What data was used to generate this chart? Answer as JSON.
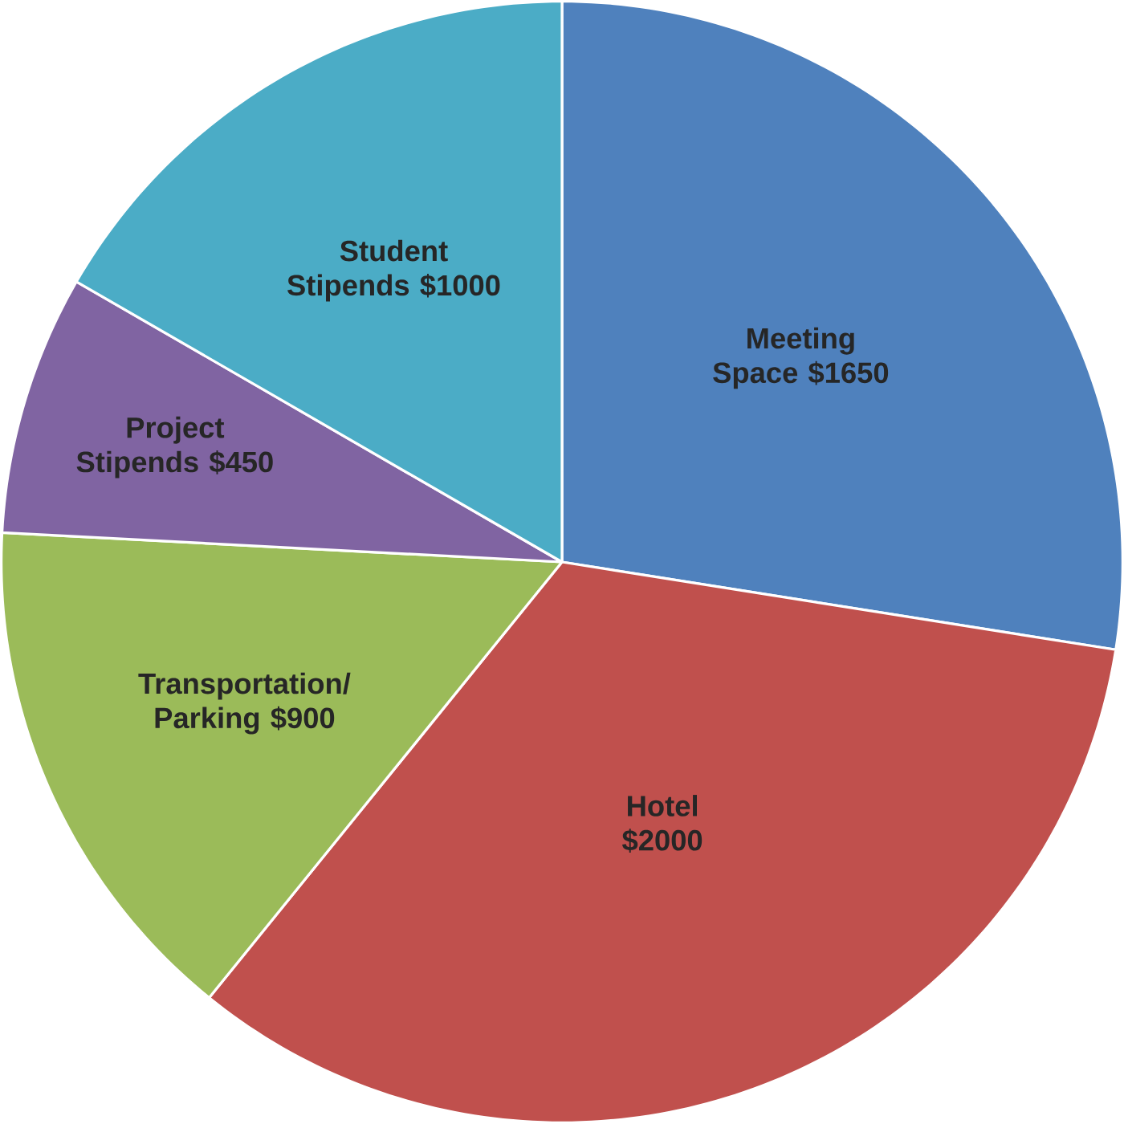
{
  "chart_data": {
    "type": "pie",
    "categories": [
      "Meeting Space",
      "Hotel",
      "Transportation/ Parking",
      "Project Stipends",
      "Student Stipends"
    ],
    "values": [
      1650,
      2000,
      900,
      450,
      1000
    ],
    "value_labels": [
      "$1650",
      "$2000",
      "$900",
      "$450",
      "$1000"
    ],
    "colors": [
      "#4f81bd",
      "#c0504d",
      "#9bbb59",
      "#8064a2",
      "#4bacc6"
    ]
  }
}
